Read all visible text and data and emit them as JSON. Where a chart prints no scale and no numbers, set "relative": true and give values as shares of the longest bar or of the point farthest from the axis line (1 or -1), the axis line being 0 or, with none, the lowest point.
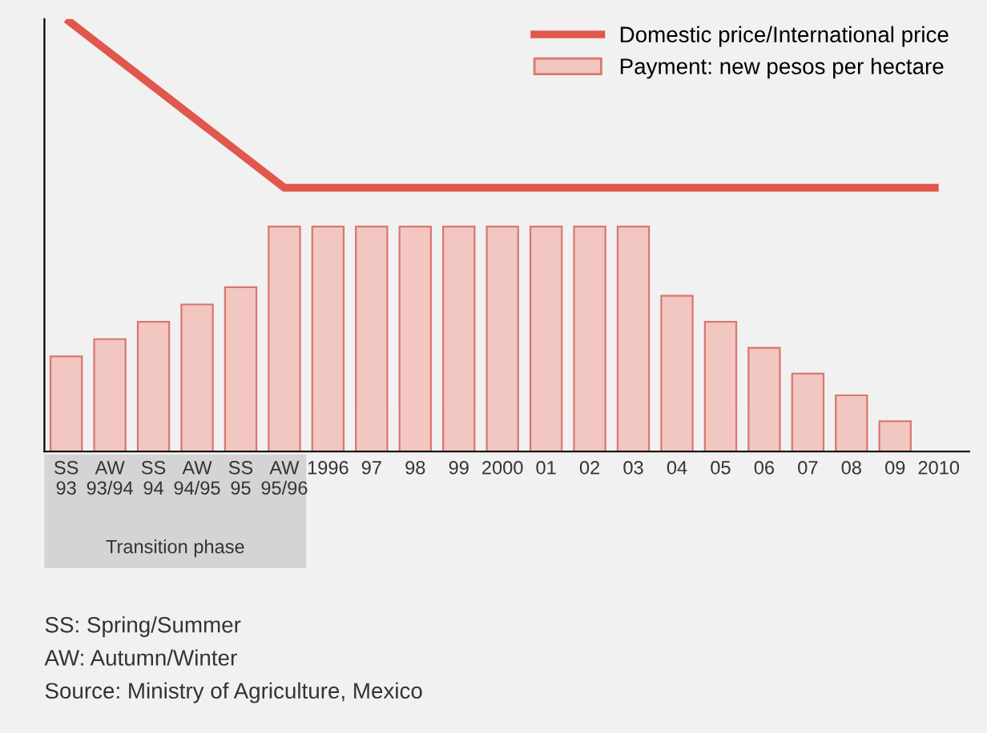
{
  "chart_data": {
    "type": "bar",
    "relative": true,
    "categories": [
      "SS\n93",
      "AW\n93/94",
      "SS\n94",
      "AW\n94/95",
      "SS\n95",
      "AW\n95/96",
      "1996",
      "97",
      "98",
      "99",
      "2000",
      "01",
      "02",
      "03",
      "04",
      "05",
      "06",
      "07",
      "08",
      "09",
      "2010"
    ],
    "series": [
      {
        "name": "Domestic price/International price",
        "type": "line",
        "color": "#e0574d",
        "values": [
          1.0,
          null,
          null,
          null,
          null,
          0.61,
          0.61,
          0.61,
          0.61,
          0.61,
          0.61,
          0.61,
          0.61,
          0.61,
          0.61,
          0.61,
          0.61,
          0.61,
          0.61,
          0.61,
          0.61
        ]
      },
      {
        "name": "Payment: new pesos per hectare",
        "color": "#f2c6c1",
        "values": [
          0.22,
          0.26,
          0.3,
          0.34,
          0.38,
          0.52,
          0.52,
          0.52,
          0.52,
          0.52,
          0.52,
          0.52,
          0.52,
          0.52,
          0.36,
          0.3,
          0.24,
          0.18,
          0.13,
          0.07,
          null
        ]
      }
    ],
    "legend": "top right",
    "grid": false,
    "annotations": [
      "Transition phase",
      "SS: Spring/Summer",
      "AW: Autumn/Winter",
      "Source: Ministry of Agriculture, Mexico"
    ]
  }
}
